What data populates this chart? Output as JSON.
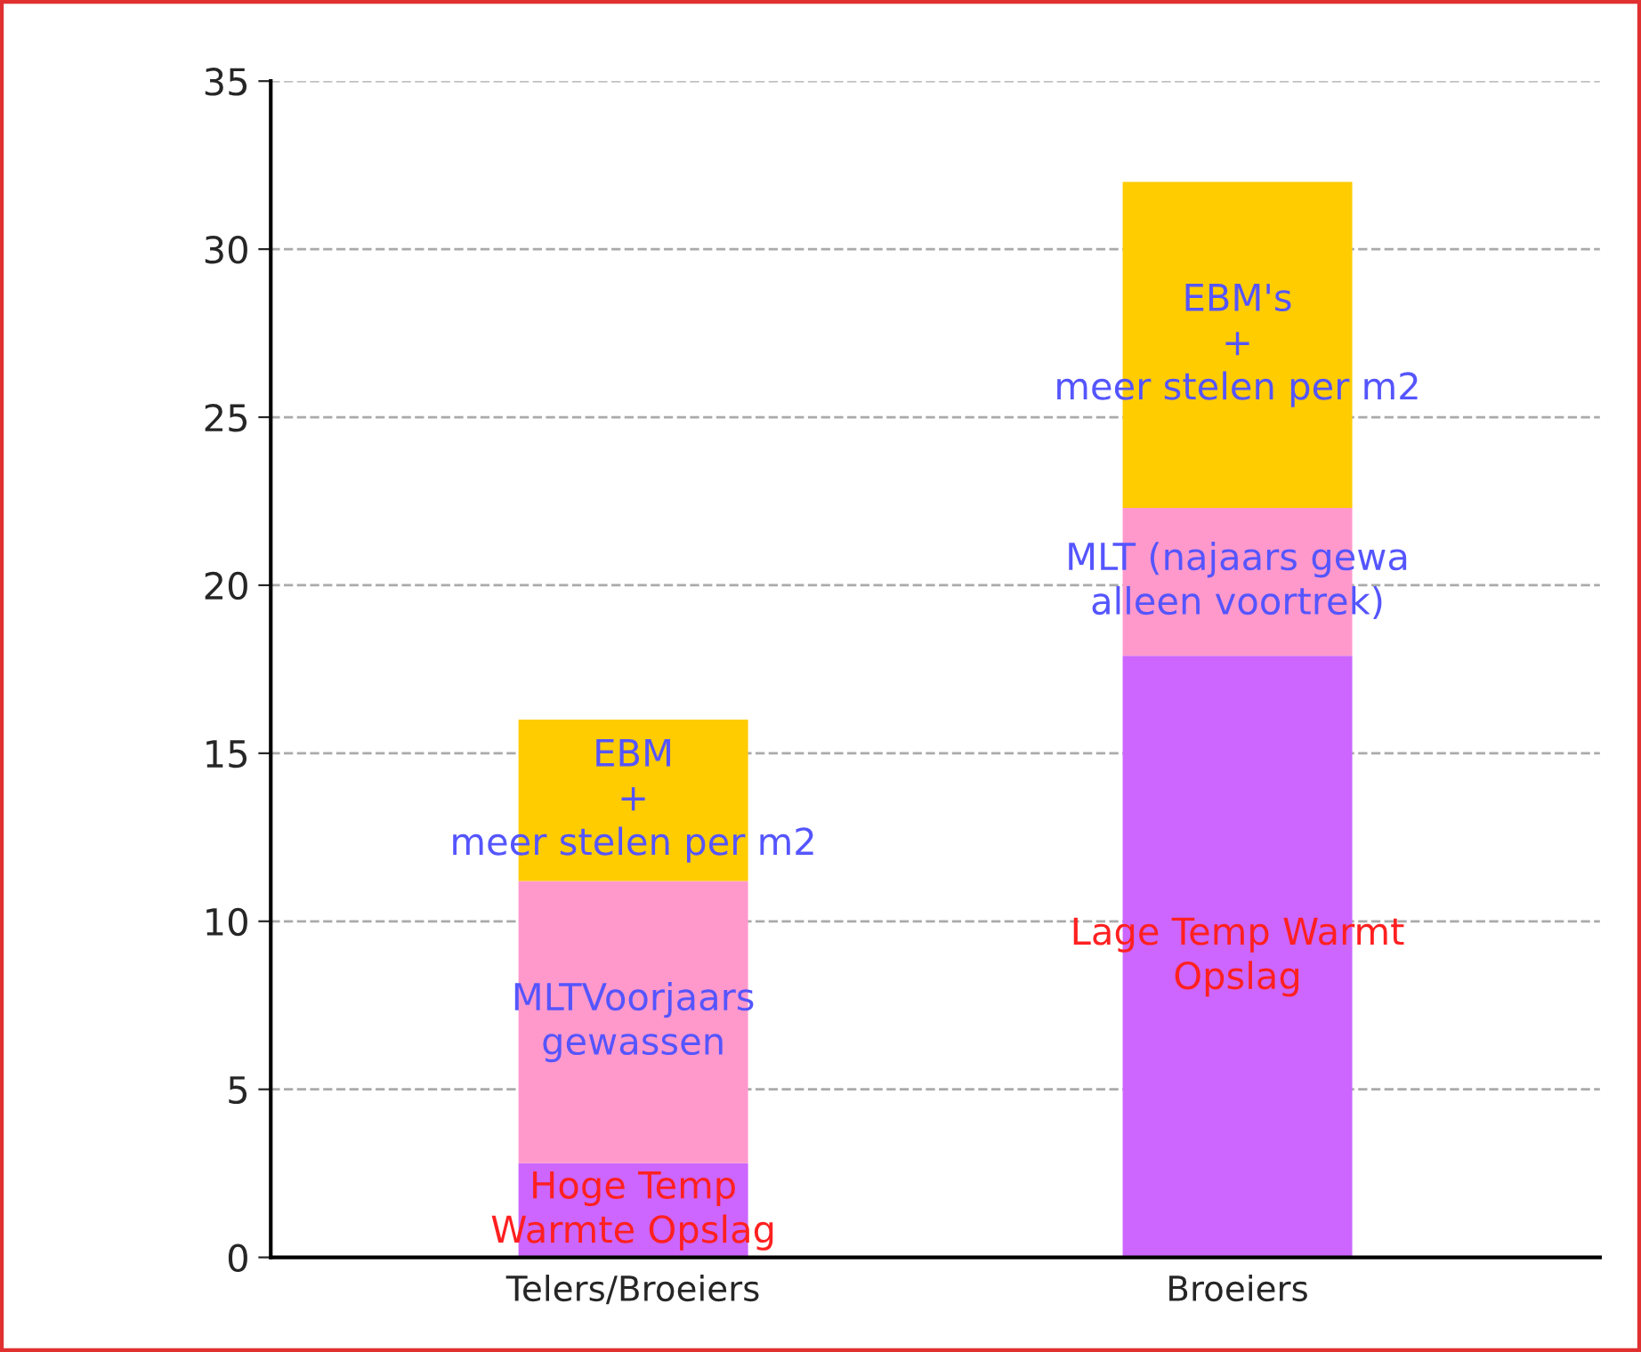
{
  "chart_data": {
    "type": "bar",
    "stacked": true,
    "categories": [
      "Telers/Broeiers",
      "Broeiers"
    ],
    "series": [
      {
        "color": "#cc66ff",
        "values": [
          2.8,
          17.9
        ],
        "value_labels": [
          "Hoge Temp\nWarmte Opslag",
          "Lage Temp Warmt\nOpslag"
        ]
      },
      {
        "color": "#ff99cc",
        "values": [
          8.4,
          4.4
        ],
        "value_labels": [
          "MLTVoorjaars\ngewassen",
          "MLT (najaars gewa\nalleen voortrek)"
        ]
      },
      {
        "color": "#ffcc00",
        "values": [
          4.8,
          9.7
        ],
        "value_labels": [
          "EBM\n+\nmeer stelen per m2",
          "EBM's\n+\nmeer stelen per m2"
        ]
      }
    ],
    "ylim": [
      0,
      35
    ],
    "yticks": [
      0,
      5,
      10,
      15,
      20,
      25,
      30,
      35
    ],
    "grid": "y"
  }
}
